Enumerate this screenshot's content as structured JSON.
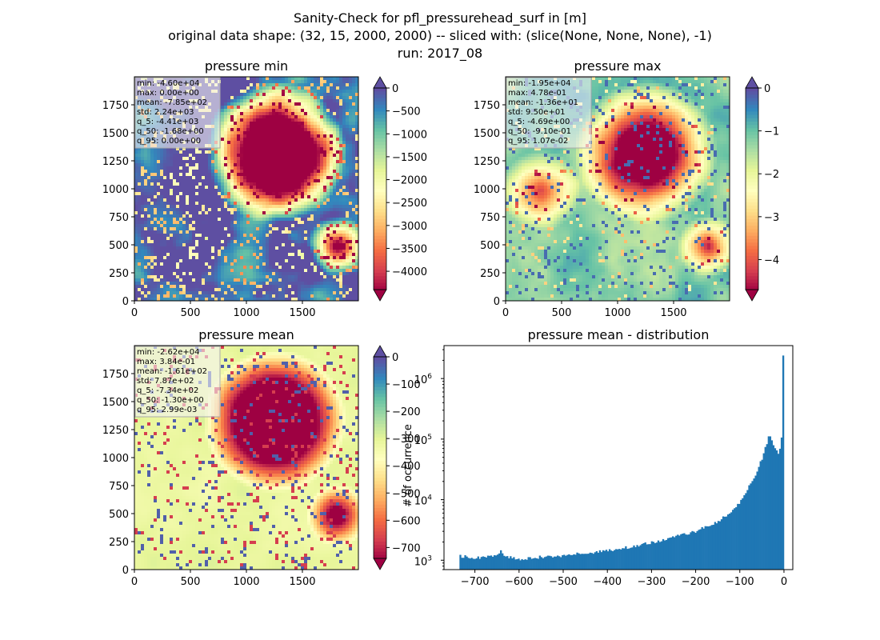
{
  "figure": {
    "title_lines": [
      "Sanity-Check for pfl_pressurehead_surf in [m]",
      "original data shape: (32, 15, 2000, 2000) -- sliced with: (slice(None, None, None), -1)",
      "run: 2017_08"
    ]
  },
  "colors": {
    "spectral": [
      "#9e0142",
      "#d53e4f",
      "#f46d43",
      "#fdae61",
      "#fee08b",
      "#ffffbf",
      "#e6f598",
      "#abdda4",
      "#66c2a5",
      "#3288bd",
      "#5e4fa2"
    ],
    "hist_bar": "#1f77b4"
  },
  "chart_data": [
    {
      "type": "heatmap",
      "title": "pressure min",
      "xlim": [
        0,
        2000
      ],
      "ylim": [
        0,
        2000
      ],
      "xticks": [
        0,
        500,
        1000,
        1500
      ],
      "yticks": [
        0,
        250,
        500,
        750,
        1000,
        1250,
        1500,
        1750
      ],
      "background": "high",
      "colorbar": {
        "vmin": -4400,
        "vmax": 0,
        "extend": "both",
        "ticks": [
          0,
          -500,
          -1000,
          -1500,
          -2000,
          -2500,
          -3000,
          -3500,
          -4000
        ],
        "tick_labels": [
          "0",
          "−500",
          "−1000",
          "−1500",
          "−2000",
          "−2500",
          "−3000",
          "−3500",
          "−4000"
        ]
      },
      "stats": [
        "min: -4.60e+04",
        "max: 0.00e+00",
        "mean: -7.85e+02",
        "std: 2.24e+03",
        "q_5: -4.41e+03",
        "q_50: -1.68e+00",
        "q_95: 0.00e+00"
      ]
    },
    {
      "type": "heatmap",
      "title": "pressure max",
      "xlim": [
        0,
        2000
      ],
      "ylim": [
        0,
        2000
      ],
      "xticks": [
        0,
        500,
        1000,
        1500
      ],
      "yticks": [
        0,
        250,
        500,
        750,
        1000,
        1250,
        1500,
        1750
      ],
      "background": "mid-high",
      "colorbar": {
        "vmin": -4.7,
        "vmax": 0,
        "extend": "both",
        "ticks": [
          0,
          -1,
          -2,
          -3,
          -4
        ],
        "tick_labels": [
          "0",
          "−1",
          "−2",
          "−3",
          "−4"
        ]
      },
      "stats": [
        "min: -1.95e+04",
        "max: 4.78e-01",
        "mean: -1.36e+01",
        "std: 9.50e+01",
        "q_5: -4.69e+00",
        "q_50: -9.10e-01",
        "q_95: 1.07e-02"
      ]
    },
    {
      "type": "heatmap",
      "title": "pressure mean",
      "xlim": [
        0,
        2000
      ],
      "ylim": [
        0,
        2000
      ],
      "xticks": [
        0,
        500,
        1000,
        1500
      ],
      "yticks": [
        0,
        250,
        500,
        750,
        1000,
        1250,
        1500,
        1750
      ],
      "background": "mid",
      "colorbar": {
        "vmin": -740,
        "vmax": 0,
        "extend": "both",
        "ticks": [
          0,
          -100,
          -200,
          -300,
          -400,
          -500,
          -600,
          -700
        ],
        "tick_labels": [
          "0",
          "−100",
          "−200",
          "−300",
          "−400",
          "−500",
          "−600",
          "−700"
        ]
      },
      "stats": [
        "min: -2.62e+04",
        "max: 3.84e-01",
        "mean: -1.61e+02",
        "std: 7.87e+02",
        "q_5: -7.34e+02",
        "q_50: -1.30e+00",
        "q_95: 2.99e-03"
      ]
    },
    {
      "type": "bar",
      "title": "pressure mean - distribution",
      "ylabel": "# of occurrence",
      "xlim": [
        -770,
        20
      ],
      "ylog": true,
      "ylim": [
        700,
        3500000
      ],
      "xticks": [
        -700,
        -600,
        -500,
        -400,
        -300,
        -200,
        -100,
        0
      ],
      "xtick_labels": [
        "−700",
        "−600",
        "−500",
        "−400",
        "−300",
        "−200",
        "−100",
        "0"
      ],
      "yticks_major": [
        1000,
        10000,
        100000,
        1000000
      ],
      "ytick_exponents": [
        "3",
        "4",
        "5",
        "6"
      ],
      "bin_range": [
        -735,
        0
      ],
      "bin_count": 200,
      "profile_points": [
        [
          -735,
          1150
        ],
        [
          -732,
          1250
        ],
        [
          -728,
          1050
        ],
        [
          -725,
          1200
        ],
        [
          -720,
          1100
        ],
        [
          -700,
          1100
        ],
        [
          -680,
          1120
        ],
        [
          -660,
          1150
        ],
        [
          -645,
          1250
        ],
        [
          -640,
          1500
        ],
        [
          -636,
          1150
        ],
        [
          -600,
          1050
        ],
        [
          -550,
          1130
        ],
        [
          -500,
          1200
        ],
        [
          -450,
          1300
        ],
        [
          -400,
          1450
        ],
        [
          -350,
          1650
        ],
        [
          -300,
          1950
        ],
        [
          -250,
          2400
        ],
        [
          -200,
          3000
        ],
        [
          -160,
          4000
        ],
        [
          -120,
          6000
        ],
        [
          -100,
          9000
        ],
        [
          -80,
          16000
        ],
        [
          -60,
          30000
        ],
        [
          -45,
          60000
        ],
        [
          -38,
          90000
        ],
        [
          -34,
          120000
        ],
        [
          -28,
          100000
        ],
        [
          -20,
          70000
        ],
        [
          -12,
          55000
        ],
        [
          -6,
          80000
        ],
        [
          0,
          2400000
        ]
      ]
    }
  ]
}
